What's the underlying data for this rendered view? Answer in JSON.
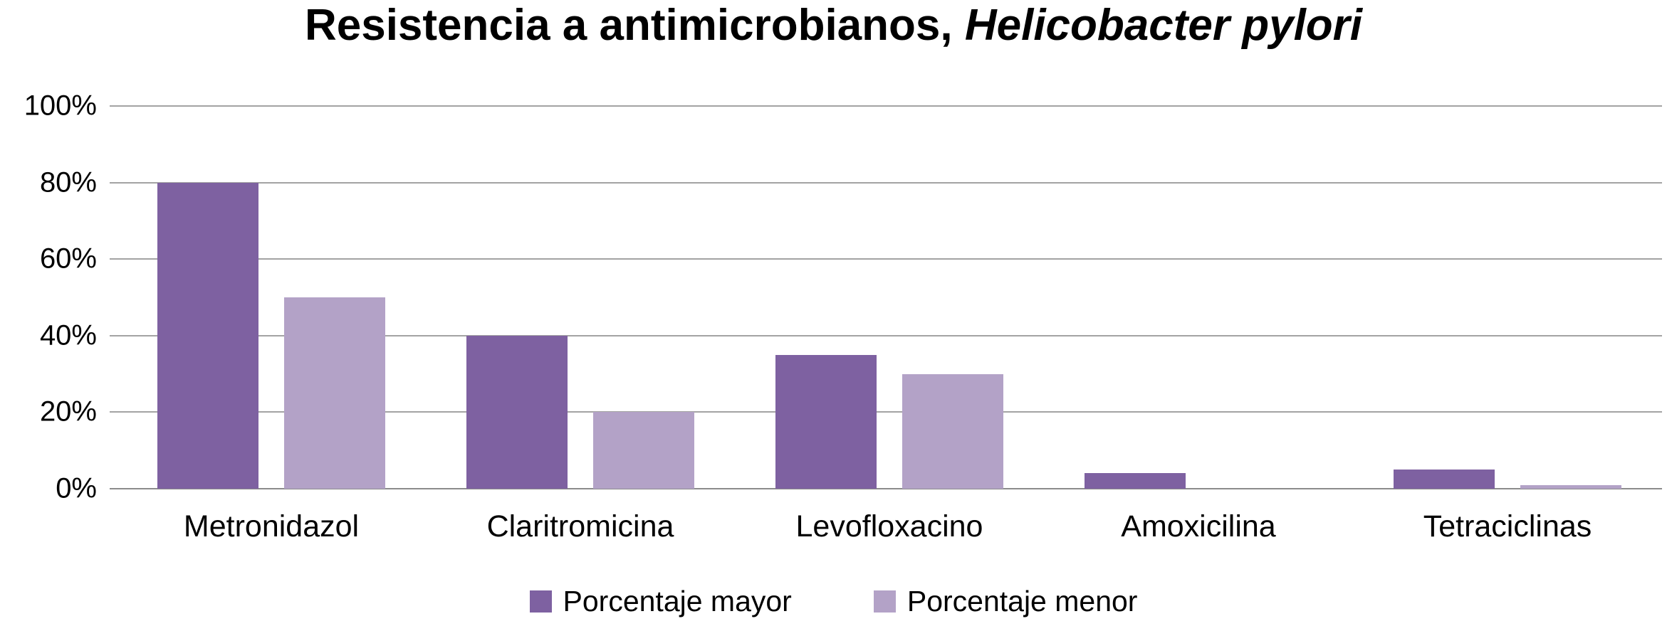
{
  "title": {
    "main": "Resistencia a antimicrobianos, ",
    "italic": "Helicobacter pylori"
  },
  "chart_data": {
    "type": "bar",
    "title": "Resistencia a antimicrobianos, Helicobacter pylori",
    "categories": [
      "Metronidazol",
      "Claritromicina",
      "Levofloxacino",
      "Amoxicilina",
      "Tetraciclinas"
    ],
    "series": [
      {
        "name": "Porcentaje mayor",
        "color": "#7E61A1",
        "values": [
          80,
          40,
          35,
          4,
          5
        ]
      },
      {
        "name": "Porcentaje menor",
        "color": "#B3A2C7",
        "values": [
          50,
          20,
          30,
          0,
          1
        ]
      }
    ],
    "xlabel": "",
    "ylabel": "",
    "ylim": [
      0,
      100
    ],
    "yticks": [
      "100%",
      "80%",
      "60%",
      "40%",
      "20%",
      "0%"
    ],
    "ytick_values": [
      100,
      80,
      60,
      40,
      20,
      0
    ],
    "grid": true,
    "legend_position": "bottom"
  },
  "colors": {
    "gridline": "#a3a3a3",
    "axis_line": "#8c8c8c",
    "text": "#000000",
    "background": "#ffffff"
  }
}
